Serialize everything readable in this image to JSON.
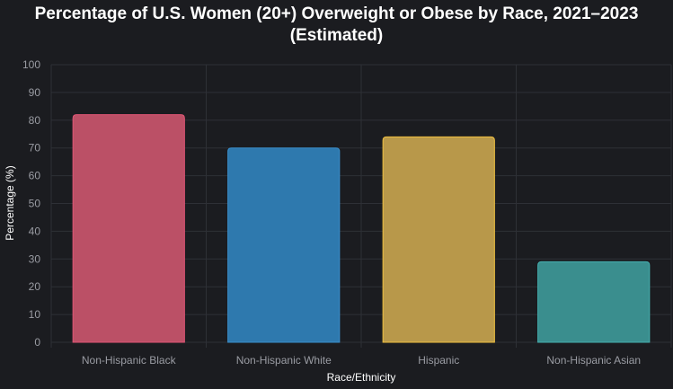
{
  "chart_data": {
    "type": "bar",
    "title_line1": "Percentage of U.S. Women (20+) Overweight or Obese by Race, 2021–2023",
    "title_line2": "(Estimated)",
    "xlabel": "Race/Ethnicity",
    "ylabel": "Percentage (%)",
    "ylim": [
      0,
      100
    ],
    "yticks": [
      0,
      10,
      20,
      30,
      40,
      50,
      60,
      70,
      80,
      90,
      100
    ],
    "categories": [
      "Non-Hispanic Black",
      "Non-Hispanic White",
      "Hispanic",
      "Non-Hispanic Asian"
    ],
    "values": [
      82,
      70,
      74,
      29
    ],
    "colors": [
      "#bb5066",
      "#2e79ae",
      "#b8984a",
      "#3a8e8e"
    ],
    "border_colors": [
      "#e05575",
      "#3a8fcc",
      "#f0c040",
      "#45b0b0"
    ],
    "grid": true
  }
}
